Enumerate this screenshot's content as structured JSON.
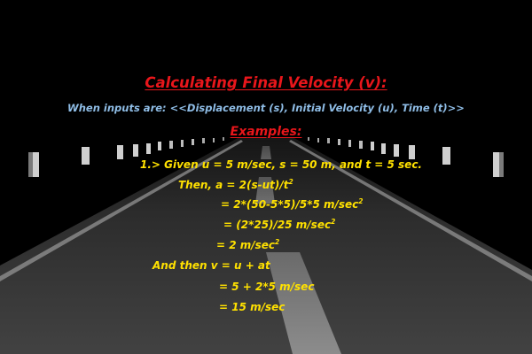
{
  "title": "Calculating Final Velocity (v):",
  "subtitle": "When inputs are: <<Displacement (s), Initial Velocity (u), Time (t)>>",
  "examples_heading": "Examples:",
  "lines": [
    {
      "text": "1.> Given u = 5 m/sec, s = 50 m, and t = 5 sec.",
      "sup": ""
    },
    {
      "text": "Then, a = 2(s-ut)/t",
      "sup": "2"
    },
    {
      "text": "= 2*(50-5*5)/5*5 m/sec",
      "sup": "2"
    },
    {
      "text": "= (2*25)/25 m/sec",
      "sup": "2"
    },
    {
      "text": "= 2 m/sec",
      "sup": "2"
    },
    {
      "text": "And then v = u + at",
      "sup": ""
    },
    {
      "text": "= 5 + 2*5 m/sec",
      "sup": ""
    },
    {
      "text": "= 15 m/sec",
      "sup": ""
    }
  ],
  "colors": {
    "background": "#000000",
    "title": "#e8161b",
    "subtitle": "#8fbde6",
    "body_text": "#ffe100",
    "road": "#3c3c3c"
  }
}
